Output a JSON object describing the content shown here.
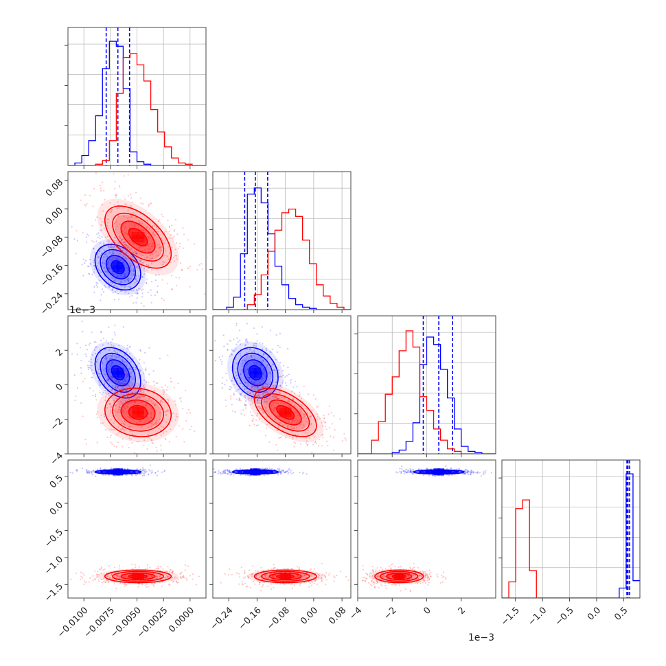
{
  "chart_data": {
    "type": "corner",
    "parameters": [
      {
        "range": [
          -0.0115,
          0.0015
        ],
        "ticks": [
          -0.01,
          -0.0075,
          -0.005,
          -0.0025,
          0.0
        ],
        "tick_labels": [
          "−0.0100",
          "−0.0075",
          "−0.0050",
          "−0.0025",
          "0.0000"
        ]
      },
      {
        "range": [
          -0.285,
          0.105
        ],
        "ticks": [
          -0.24,
          -0.16,
          -0.08,
          0.0,
          0.08
        ],
        "tick_labels": [
          "−0.24",
          "−0.16",
          "−0.08",
          "0.00",
          "0.08"
        ]
      },
      {
        "range": [
          -4.0,
          4.0
        ],
        "ticks": [
          -4,
          -2,
          0,
          2
        ],
        "tick_labels": [
          "−4",
          "−2",
          "0",
          "2"
        ],
        "offset_label": "1e−3"
      },
      {
        "range": [
          -1.75,
          0.8
        ],
        "ticks": [
          -1.5,
          -1.0,
          -0.5,
          0.0,
          0.5
        ],
        "tick_labels": [
          "−1.5",
          "−1.0",
          "−0.5",
          "0.0",
          "0.5"
        ]
      }
    ],
    "series": [
      {
        "color": "#0000ff",
        "means": [
          -0.0068,
          -0.165,
          0.7,
          0.58
        ],
        "sds": [
          0.0011,
          0.033,
          0.75,
          0.02
        ],
        "corr": {
          "0-1": -0.3,
          "0-2": -0.35,
          "1-2": -0.2
        },
        "quantiles": [
          [
            -0.0079,
            -0.0068,
            -0.0057
          ],
          [
            -0.195,
            -0.165,
            -0.13
          ],
          [
            -0.2,
            0.7,
            1.5
          ],
          [
            0.56,
            0.58,
            0.61
          ]
        ],
        "histograms": [
          [
            0,
            0.02,
            0.08,
            0.2,
            0.4,
            0.78,
            1.0,
            0.96,
            0.62,
            0.11,
            0.03,
            0.01,
            0,
            0,
            0,
            0,
            0,
            0,
            0,
            0
          ],
          [
            0,
            0,
            0.02,
            0.1,
            0.45,
            0.93,
            0.98,
            0.86,
            0.61,
            0.35,
            0.2,
            0.09,
            0.04,
            0.02,
            0.01,
            0,
            0,
            0,
            0,
            0
          ],
          [
            0,
            0,
            0,
            0,
            0,
            0.01,
            0.03,
            0.1,
            0.25,
            0.72,
            0.94,
            0.88,
            0.68,
            0.45,
            0.2,
            0.06,
            0.02,
            0.01,
            0,
            0
          ],
          [
            0,
            0,
            0,
            0,
            0,
            0,
            0,
            0,
            0,
            0,
            0,
            0,
            0,
            0,
            0,
            0,
            0,
            0.08,
            1.0,
            0.14
          ]
        ]
      },
      {
        "color": "#ff0000",
        "means": [
          -0.0049,
          -0.08,
          -1.6,
          -1.35
        ],
        "sds": [
          0.0016,
          0.045,
          0.72,
          0.06
        ],
        "corr": {
          "0-1": -0.55,
          "0-2": -0.1,
          "1-2": -0.55
        },
        "histograms": [
          [
            0,
            0,
            0,
            0,
            0.01,
            0.04,
            0.2,
            0.58,
            0.87,
            0.9,
            0.81,
            0.68,
            0.45,
            0.27,
            0.15,
            0.06,
            0.02,
            0.01,
            0,
            0
          ],
          [
            0,
            0,
            0,
            0,
            0,
            0.04,
            0.12,
            0.28,
            0.47,
            0.64,
            0.78,
            0.81,
            0.75,
            0.56,
            0.37,
            0.2,
            0.11,
            0.05,
            0.02,
            0
          ],
          [
            0,
            0,
            0.11,
            0.26,
            0.48,
            0.62,
            0.83,
            0.99,
            0.86,
            0.46,
            0.35,
            0.2,
            0.11,
            0.04,
            0.02,
            0,
            0,
            0,
            0,
            0
          ],
          [
            0,
            0.13,
            0.72,
            0.79,
            0.22,
            0,
            0,
            0,
            0,
            0,
            0,
            0,
            0,
            0,
            0,
            0,
            0,
            0,
            0,
            0
          ]
        ]
      }
    ],
    "grid": true
  }
}
